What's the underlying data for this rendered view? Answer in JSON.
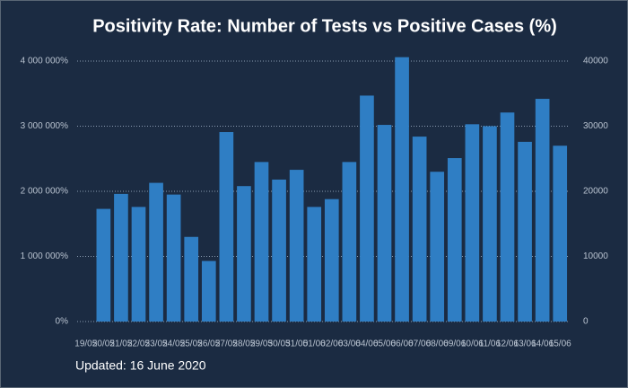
{
  "chart_data": {
    "type": "bar",
    "title": "Positivity Rate: Number of Tests vs Positive Cases (%)",
    "footnote": "Updated: 16 June 2020",
    "categories": [
      "19/05",
      "20/05",
      "21/05",
      "22/05",
      "23/05",
      "24/05",
      "25/05",
      "26/05",
      "27/05",
      "28/05",
      "29/05",
      "30/05",
      "31/05",
      "01/06",
      "02/06",
      "03/06",
      "04/06",
      "05/06",
      "06/06",
      "07/06",
      "08/06",
      "09/06",
      "10/06",
      "11/06",
      "12/06",
      "13/06",
      "14/06",
      "15/06"
    ],
    "series": [
      {
        "color": "#2f7ec4",
        "axis": "y2",
        "values": [
          null,
          17300,
          19600,
          17600,
          21300,
          19500,
          13000,
          9300,
          29100,
          20800,
          24500,
          21800,
          23300,
          17600,
          18800,
          24500,
          34700,
          30200,
          40600,
          28400,
          23000,
          25100,
          30300,
          30000,
          32100,
          27600,
          34200,
          27000
        ]
      }
    ],
    "ylim": [
      0,
      4000000
    ],
    "yticks": [
      {
        "value": 0,
        "label": "0%"
      },
      {
        "value": 1000000,
        "label": "1 000 000%"
      },
      {
        "value": 2000000,
        "label": "2 000 000%"
      },
      {
        "value": 3000000,
        "label": "3 000 000%"
      },
      {
        "value": 4000000,
        "label": "4 000 000%"
      }
    ],
    "y2lim": [
      0,
      40000
    ],
    "y2ticks": [
      0,
      10000,
      20000,
      30000,
      40000
    ],
    "grid": true
  }
}
